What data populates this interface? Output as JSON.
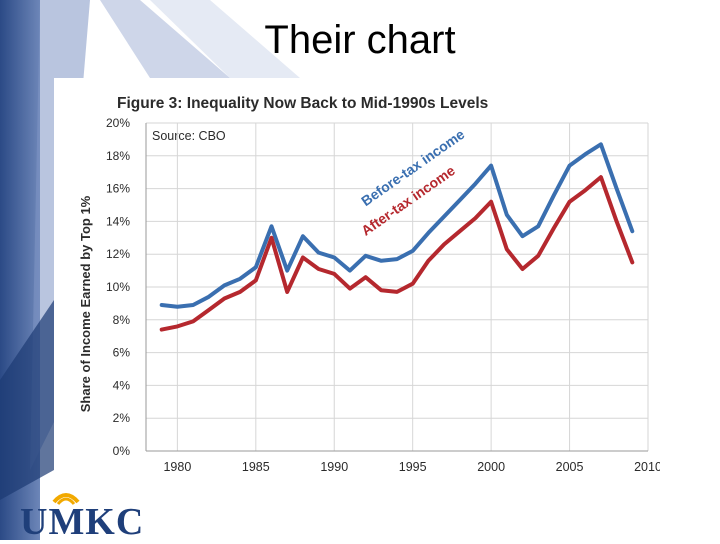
{
  "slide": {
    "title": "Their chart",
    "logo_text": "UMKC"
  },
  "colors": {
    "before_tax": "#3a6fb0",
    "after_tax": "#b5282e",
    "title_text": "#2b2b2b",
    "logo_blue": "#1f3f7a",
    "logo_gold": "#f2a900"
  },
  "chart_data": {
    "type": "line",
    "title": "Figure 3: Inequality Now Back to Mid-1990s Levels",
    "annotation": "Source: CBO",
    "ylabel": "Share of Income Earned by Top 1%",
    "xlabel": "",
    "xlim": [
      1978,
      2010
    ],
    "ylim": [
      0,
      20
    ],
    "grid": true,
    "x_ticks": [
      "1980",
      "1985",
      "1990",
      "1995",
      "2000",
      "2005",
      "2010"
    ],
    "y_ticks": [
      "0%",
      "2%",
      "4%",
      "6%",
      "8%",
      "10%",
      "12%",
      "14%",
      "16%",
      "18%",
      "20%"
    ],
    "x": [
      1979,
      1980,
      1981,
      1982,
      1983,
      1984,
      1985,
      1986,
      1987,
      1988,
      1989,
      1990,
      1991,
      1992,
      1993,
      1994,
      1995,
      1996,
      1997,
      1998,
      1999,
      2000,
      2001,
      2002,
      2003,
      2004,
      2005,
      2006,
      2007,
      2008,
      2009
    ],
    "series": [
      {
        "name": "Before-tax income",
        "values": [
          8.9,
          8.8,
          8.9,
          9.4,
          10.1,
          10.5,
          11.2,
          13.7,
          11.0,
          13.1,
          12.1,
          11.8,
          11.0,
          11.9,
          11.6,
          11.7,
          12.2,
          13.3,
          14.3,
          15.3,
          16.3,
          17.4,
          14.4,
          13.1,
          13.7,
          15.6,
          17.4,
          18.1,
          18.7,
          16.0,
          13.4
        ]
      },
      {
        "name": "After-tax income",
        "values": [
          7.4,
          7.6,
          7.9,
          8.6,
          9.3,
          9.7,
          10.4,
          13.0,
          9.7,
          11.8,
          11.1,
          10.8,
          9.9,
          10.6,
          9.8,
          9.7,
          10.2,
          11.6,
          12.6,
          13.4,
          14.2,
          15.2,
          12.3,
          11.1,
          11.9,
          13.6,
          15.2,
          15.9,
          16.7,
          14.0,
          11.5
        ]
      }
    ]
  }
}
